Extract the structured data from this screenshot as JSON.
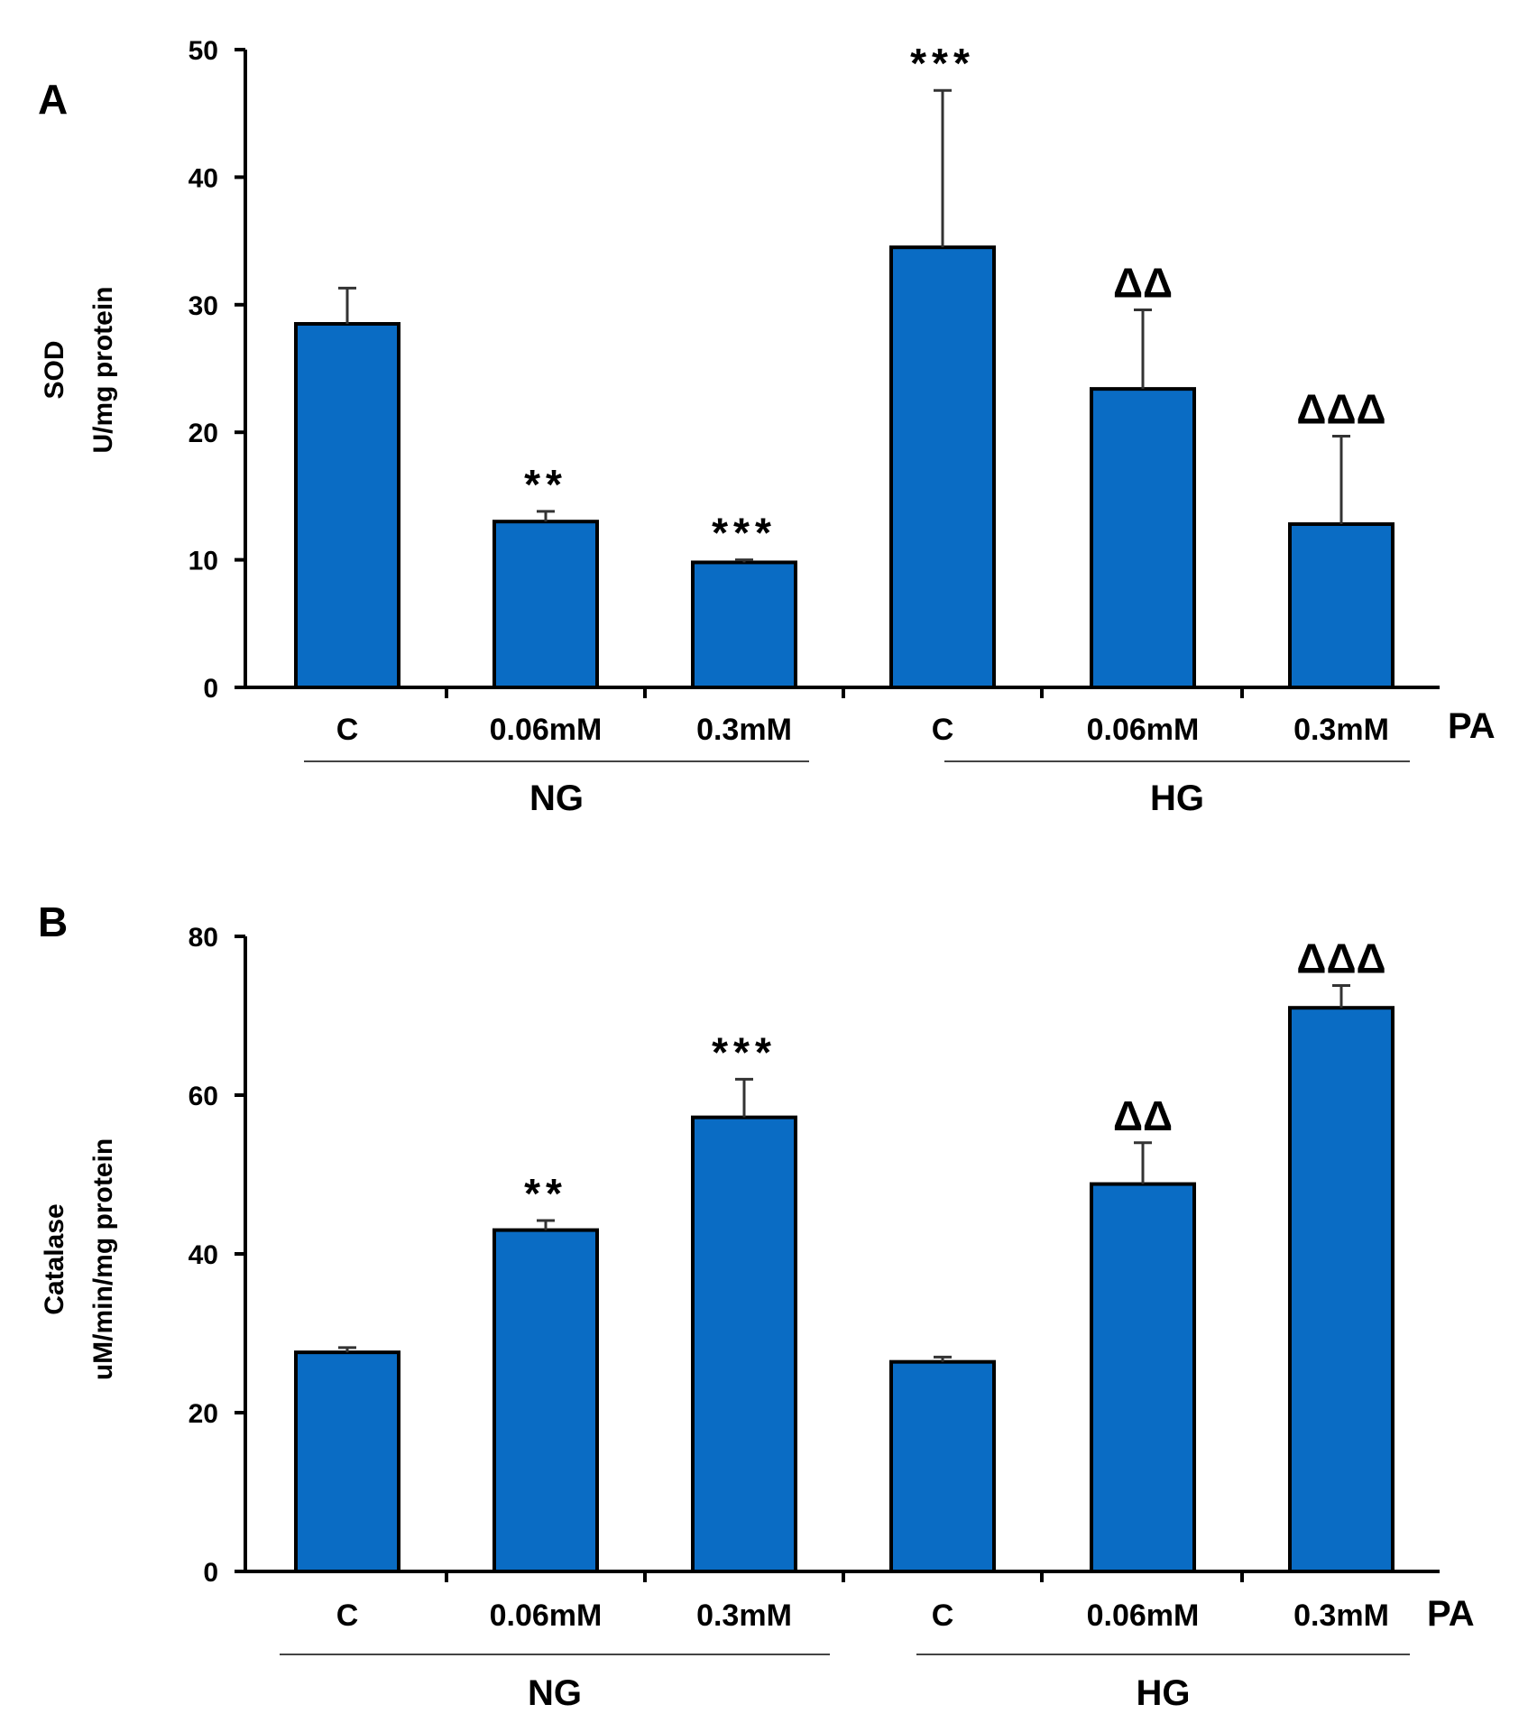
{
  "chart_data": [
    {
      "type": "bar",
      "panel_label": "A",
      "categories": [
        "C",
        "0.06mM",
        "0.3mM",
        "C",
        "0.06mM",
        "0.3mM"
      ],
      "groups": [
        {
          "label": "NG",
          "categories": [
            0,
            1,
            2
          ]
        },
        {
          "label": "HG",
          "categories": [
            3,
            4,
            5
          ]
        }
      ],
      "values": [
        28.5,
        13.0,
        9.8,
        34.5,
        23.4,
        12.8
      ],
      "errors": [
        2.8,
        0.8,
        0.2,
        12.3,
        6.2,
        6.9
      ],
      "significance": [
        "",
        "**",
        "***",
        "***",
        "ΔΔ",
        "ΔΔΔ"
      ],
      "ylabel": [
        "SOD",
        "U/mg protein"
      ],
      "xlabel": "PA",
      "ylim": [
        0,
        50
      ],
      "yticks": [
        0,
        10,
        20,
        30,
        40,
        50
      ],
      "bar_color": "#0a6cc4",
      "grid": false
    },
    {
      "type": "bar",
      "panel_label": "B",
      "categories": [
        "C",
        "0.06mM",
        "0.3mM",
        "C",
        "0.06mM",
        "0.3mM"
      ],
      "groups": [
        {
          "label": "NG",
          "categories": [
            0,
            1,
            2
          ]
        },
        {
          "label": "HG",
          "categories": [
            3,
            4,
            5
          ]
        }
      ],
      "values": [
        27.6,
        43.0,
        57.2,
        26.4,
        48.8,
        71.0
      ],
      "errors": [
        0.6,
        1.2,
        4.8,
        0.6,
        5.2,
        2.8
      ],
      "significance": [
        "",
        "**",
        "***",
        "",
        "ΔΔ",
        "ΔΔΔ"
      ],
      "ylabel": [
        "Catalase",
        "uM/min/mg protein"
      ],
      "xlabel": "PA",
      "ylim": [
        0,
        80
      ],
      "yticks": [
        0,
        20,
        40,
        60,
        80
      ],
      "bar_color": "#0a6cc4",
      "grid": false
    }
  ]
}
